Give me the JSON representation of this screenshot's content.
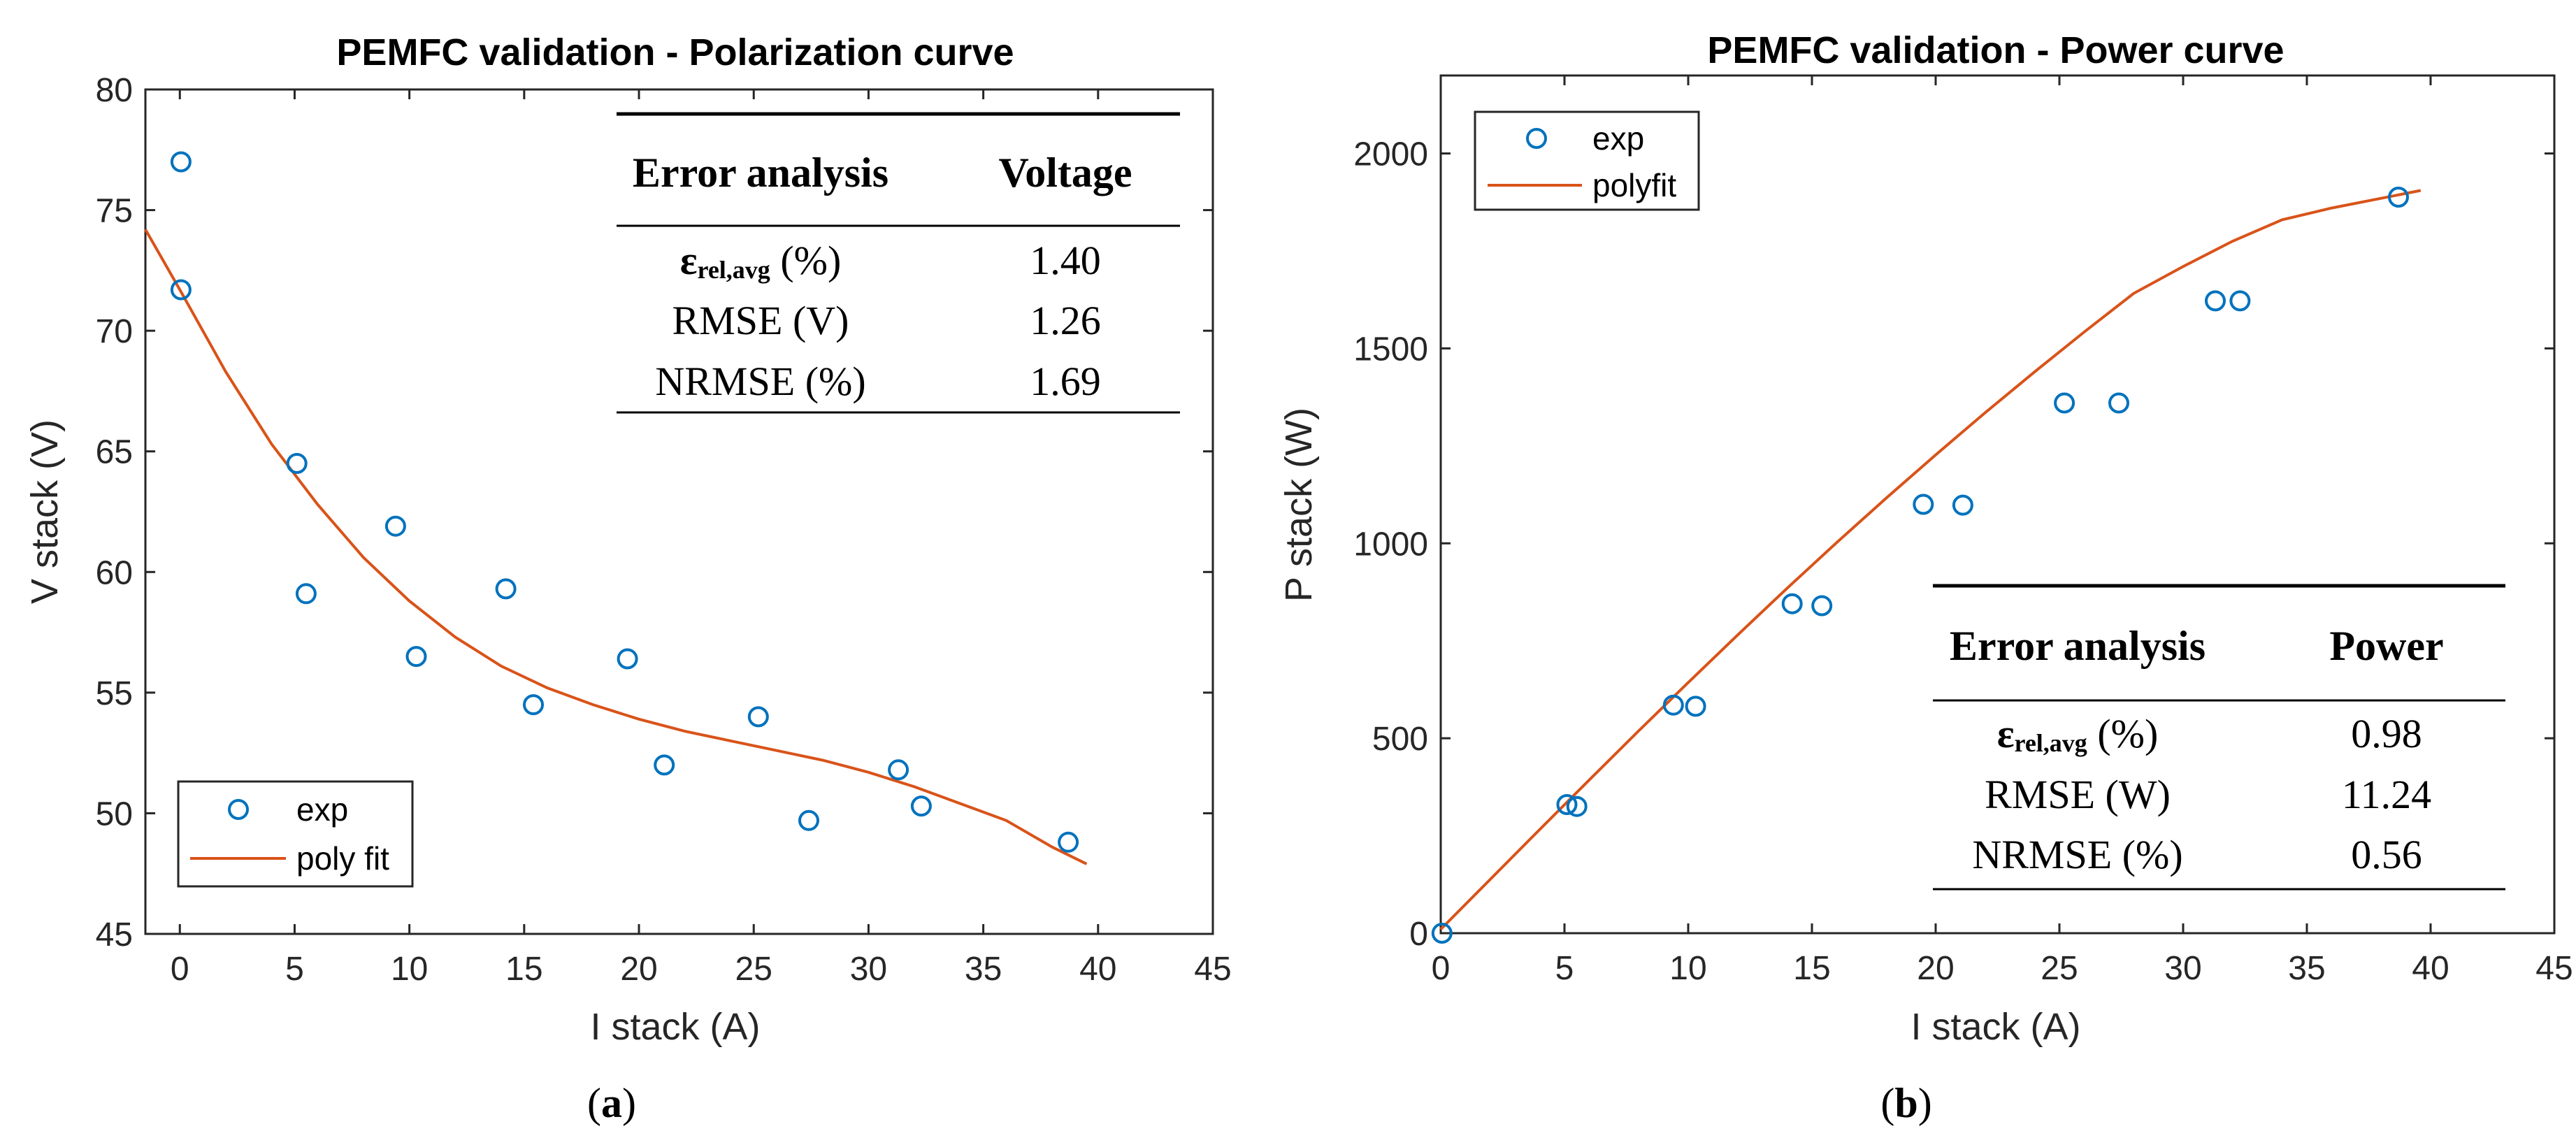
{
  "colors": {
    "marker": "#0072BD",
    "fit": "#D95319",
    "axis": "#262626"
  },
  "chart_data": [
    {
      "type": "scatter",
      "title": "PEMFC validation - Polarization curve",
      "xlabel": "I stack (A)",
      "ylabel": "V stack (V)",
      "xlim": [
        -1.5,
        45
      ],
      "ylim": [
        45,
        80
      ],
      "xticks": [
        0,
        5,
        10,
        15,
        20,
        25,
        30,
        35,
        40,
        45
      ],
      "yticks": [
        45,
        50,
        55,
        60,
        65,
        70,
        75,
        80
      ],
      "xtick_labels": [
        "0",
        "5",
        "10",
        "15",
        "20",
        "25",
        "30",
        "35",
        "40",
        "45"
      ],
      "ytick_labels": [
        "45",
        "50",
        "55",
        "60",
        "65",
        "70",
        "75",
        "80"
      ],
      "legend_location": "bottom-left",
      "series": [
        {
          "name": "exp",
          "kind": "markers",
          "x": [
            0.05,
            0.05,
            5.1,
            5.5,
            9.4,
            10.3,
            14.2,
            15.4,
            19.5,
            21.1,
            25.2,
            27.4,
            31.3,
            32.3,
            38.7
          ],
          "y": [
            77.0,
            71.7,
            64.5,
            59.1,
            61.9,
            56.5,
            59.3,
            54.5,
            56.4,
            52.0,
            54.0,
            49.7,
            51.8,
            50.3,
            48.8
          ]
        },
        {
          "name": "poly fit",
          "kind": "line",
          "x": [
            -1.5,
            0,
            2,
            4,
            6,
            8,
            10,
            12,
            14,
            16,
            18,
            20,
            22,
            24,
            26,
            28,
            30,
            32,
            34,
            36,
            38,
            39.5
          ],
          "y": [
            74.2,
            71.7,
            68.3,
            65.3,
            62.8,
            60.6,
            58.8,
            57.3,
            56.1,
            55.2,
            54.5,
            53.9,
            53.4,
            53.0,
            52.6,
            52.2,
            51.7,
            51.1,
            50.4,
            49.7,
            48.6,
            47.9
          ]
        }
      ],
      "table": {
        "header": [
          "Error analysis",
          "Voltage"
        ],
        "rows": [
          {
            "symbol": "ε",
            "subscript": "rel,avg",
            "label_suffix": " (%)",
            "value": "1.40"
          },
          {
            "label": "RMSE (V)",
            "value": "1.26"
          },
          {
            "label": "NRMSE (%)",
            "value": "1.69"
          }
        ]
      },
      "caption": {
        "prefix": "(",
        "letter": "a",
        "suffix": ")"
      }
    },
    {
      "type": "scatter",
      "title": "PEMFC validation - Power curve",
      "xlabel": "I stack (A)",
      "ylabel": "P stack (W)",
      "xlim": [
        0,
        45
      ],
      "ylim": [
        0,
        2200
      ],
      "xticks": [
        0,
        5,
        10,
        15,
        20,
        25,
        30,
        35,
        40,
        45
      ],
      "yticks": [
        0,
        500,
        1000,
        1500,
        2000
      ],
      "xtick_labels": [
        "0",
        "5",
        "10",
        "15",
        "20",
        "25",
        "30",
        "35",
        "40",
        "45"
      ],
      "ytick_labels": [
        "0",
        "500",
        "1000",
        "1500",
        "2000"
      ],
      "legend_location": "top-left",
      "series": [
        {
          "name": "exp",
          "kind": "markers",
          "x": [
            0.05,
            5.1,
            5.5,
            9.4,
            10.3,
            14.2,
            15.4,
            19.5,
            21.1,
            25.2,
            27.4,
            31.3,
            32.3,
            38.7
          ],
          "y": [
            0,
            330,
            325,
            585,
            582,
            845,
            840,
            1100,
            1098,
            1360,
            1360,
            1622,
            1622,
            1888
          ]
        },
        {
          "name": "polyfit",
          "kind": "line",
          "x": [
            0,
            2,
            4,
            6,
            8,
            10,
            12,
            14,
            16,
            18,
            20,
            22,
            24,
            26,
            28,
            30,
            32,
            34,
            36,
            38,
            39.6
          ],
          "y": [
            10,
            138,
            266,
            393,
            519,
            643,
            765,
            885,
            1002,
            1116,
            1227,
            1335,
            1440,
            1542,
            1641,
            1710,
            1775,
            1830,
            1860,
            1885,
            1905
          ]
        }
      ],
      "table": {
        "header": [
          "Error analysis",
          "Power"
        ],
        "rows": [
          {
            "symbol": "ε",
            "subscript": "rel,avg",
            "label_suffix": " (%)",
            "value": "0.98"
          },
          {
            "label": "RMSE (W)",
            "value": "11.24"
          },
          {
            "label": "NRMSE (%)",
            "value": "0.56"
          }
        ]
      },
      "caption": {
        "prefix": "(",
        "letter": "b",
        "suffix": ")"
      }
    }
  ]
}
